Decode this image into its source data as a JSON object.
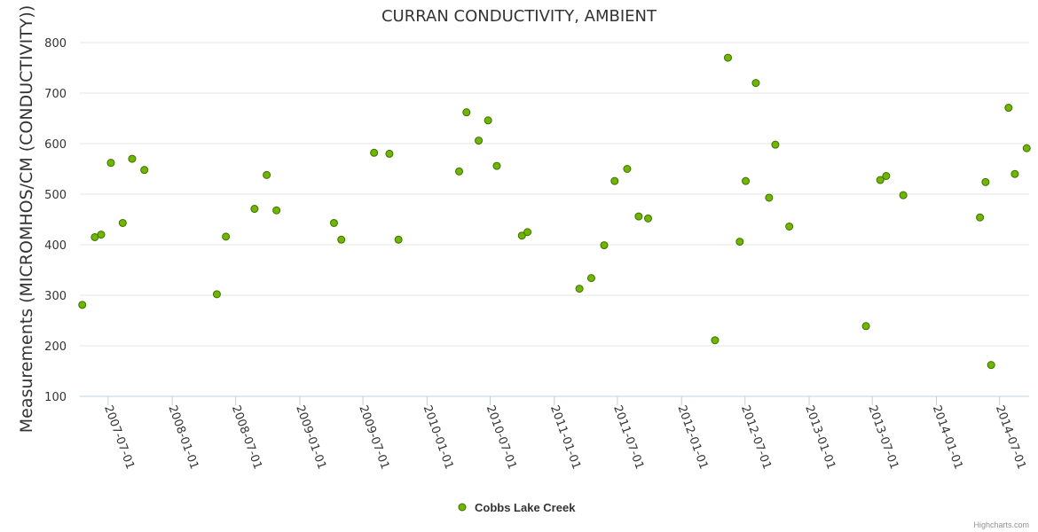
{
  "chart_data": {
    "type": "scatter",
    "title": "CURRAN CONDUCTIVITY, AMBIENT",
    "xlabel": "",
    "ylabel": "Measurements (MICROMHOS/CM (CONDUCTIVITY))",
    "x_axis_type": "datetime",
    "xlim": [
      "2007-04-11",
      "2014-09-24"
    ],
    "ylim": [
      100,
      800
    ],
    "y_ticks": [
      100,
      200,
      300,
      400,
      500,
      600,
      700,
      800
    ],
    "x_tick_labels": [
      "2007-07-01",
      "2008-01-01",
      "2008-07-01",
      "2009-01-01",
      "2009-07-01",
      "2010-01-01",
      "2010-07-01",
      "2011-01-01",
      "2011-07-01",
      "2012-01-01",
      "2012-07-01",
      "2013-01-01",
      "2013-07-01",
      "2014-01-01",
      "2014-07-01"
    ],
    "grid": "horizontal",
    "legend_position": "bottom-center",
    "marker_color": "#6eb600",
    "marker_stroke": "#3f6f00",
    "series": [
      {
        "name": "Cobbs Lake Creek",
        "points": [
          {
            "x": "2007-04-18",
            "y": 281
          },
          {
            "x": "2007-05-24",
            "y": 415
          },
          {
            "x": "2007-06-11",
            "y": 420
          },
          {
            "x": "2007-07-09",
            "y": 562
          },
          {
            "x": "2007-08-12",
            "y": 443
          },
          {
            "x": "2007-09-08",
            "y": 570
          },
          {
            "x": "2007-10-13",
            "y": 548
          },
          {
            "x": "2008-05-08",
            "y": 302
          },
          {
            "x": "2008-06-03",
            "y": 416
          },
          {
            "x": "2008-08-24",
            "y": 471
          },
          {
            "x": "2008-09-28",
            "y": 538
          },
          {
            "x": "2008-10-26",
            "y": 468
          },
          {
            "x": "2009-04-09",
            "y": 443
          },
          {
            "x": "2009-04-30",
            "y": 410
          },
          {
            "x": "2009-08-02",
            "y": 582
          },
          {
            "x": "2009-09-15",
            "y": 580
          },
          {
            "x": "2009-10-11",
            "y": 410
          },
          {
            "x": "2010-04-03",
            "y": 545
          },
          {
            "x": "2010-04-24",
            "y": 662
          },
          {
            "x": "2010-05-29",
            "y": 606
          },
          {
            "x": "2010-06-25",
            "y": 646
          },
          {
            "x": "2010-07-20",
            "y": 556
          },
          {
            "x": "2010-09-30",
            "y": 418
          },
          {
            "x": "2010-10-16",
            "y": 425
          },
          {
            "x": "2011-03-14",
            "y": 313
          },
          {
            "x": "2011-04-17",
            "y": 334
          },
          {
            "x": "2011-05-24",
            "y": 399
          },
          {
            "x": "2011-06-23",
            "y": 526
          },
          {
            "x": "2011-07-29",
            "y": 550
          },
          {
            "x": "2011-08-31",
            "y": 456
          },
          {
            "x": "2011-09-27",
            "y": 452
          },
          {
            "x": "2012-04-06",
            "y": 211
          },
          {
            "x": "2012-05-13",
            "y": 770
          },
          {
            "x": "2012-06-16",
            "y": 406
          },
          {
            "x": "2012-07-03",
            "y": 526
          },
          {
            "x": "2012-08-01",
            "y": 720
          },
          {
            "x": "2012-09-08",
            "y": 493
          },
          {
            "x": "2012-09-26",
            "y": 598
          },
          {
            "x": "2012-11-05",
            "y": 436
          },
          {
            "x": "2013-06-13",
            "y": 239
          },
          {
            "x": "2013-07-24",
            "y": 528
          },
          {
            "x": "2013-08-10",
            "y": 536
          },
          {
            "x": "2013-09-28",
            "y": 498
          },
          {
            "x": "2014-05-06",
            "y": 454
          },
          {
            "x": "2014-05-22",
            "y": 524
          },
          {
            "x": "2014-06-07",
            "y": 162
          },
          {
            "x": "2014-07-27",
            "y": 671
          },
          {
            "x": "2014-08-14",
            "y": 540
          },
          {
            "x": "2014-09-17",
            "y": 591
          }
        ]
      }
    ]
  },
  "credits": "Highcharts.com"
}
